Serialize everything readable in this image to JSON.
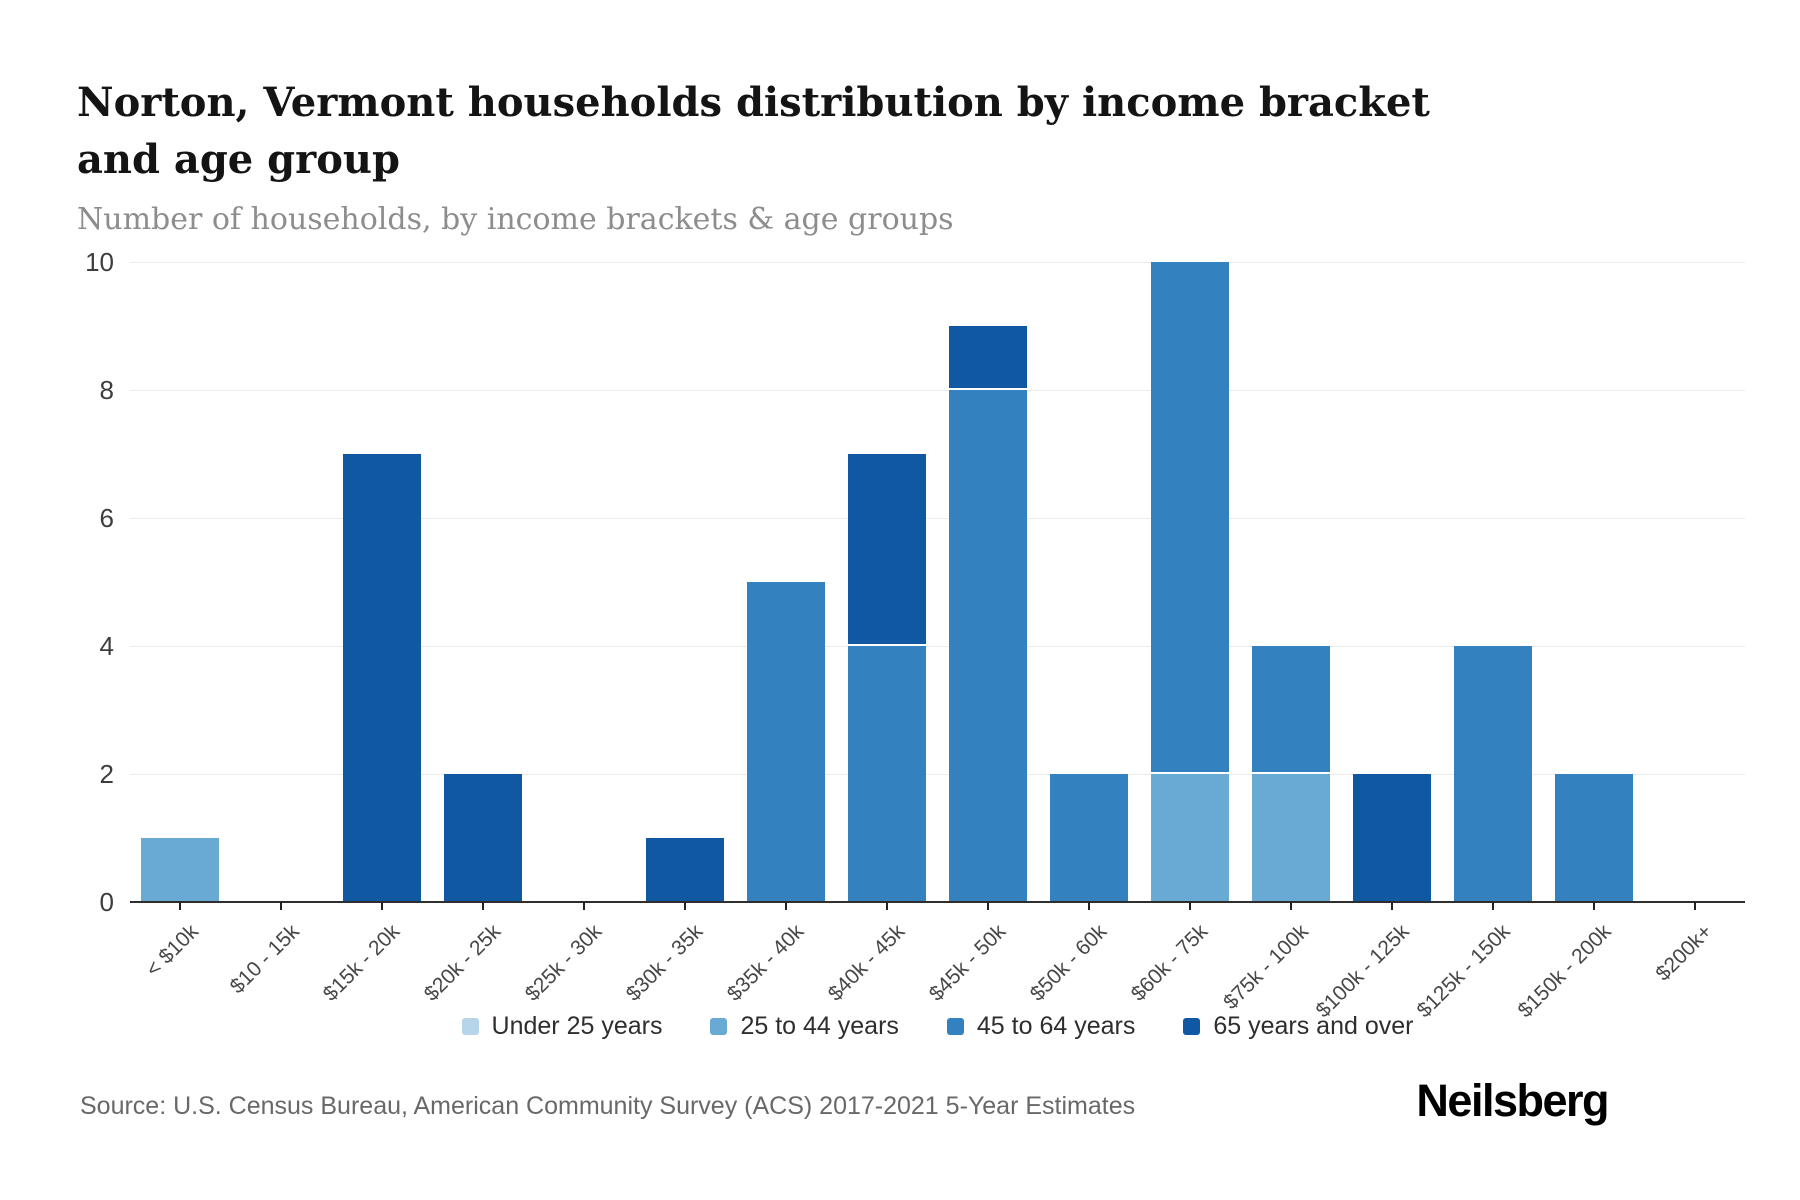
{
  "header": {
    "title": "Norton, Vermont households distribution by income bracket and age group",
    "subtitle": "Number of households, by income brackets & age groups"
  },
  "footer": {
    "source": "Source: U.S. Census Bureau, American Community Survey (ACS) 2017-2021 5-Year Estimates",
    "brand": "Neilsberg"
  },
  "chart_data": {
    "type": "bar",
    "stacked": true,
    "title": "Norton, Vermont households distribution by income bracket and age group",
    "xlabel": "",
    "ylabel": "Number of households",
    "ylim": [
      0,
      10
    ],
    "yticks": [
      0,
      2,
      4,
      6,
      8,
      10
    ],
    "grid": true,
    "legend_position": "bottom",
    "categories": [
      "< $10k",
      "$10 - 15k",
      "$15k - 20k",
      "$20k - 25k",
      "$25k - 30k",
      "$30k - 35k",
      "$35k - 40k",
      "$40k - 45k",
      "$45k - 50k",
      "$50k - 60k",
      "$60k - 75k",
      "$75k - 100k",
      "$100k - 125k",
      "$125k - 150k",
      "$150k - 200k",
      "$200k+"
    ],
    "series": [
      {
        "name": "Under 25 years",
        "color": "#b7d5ea",
        "values": [
          0,
          0,
          0,
          0,
          0,
          0,
          0,
          0,
          0,
          0,
          0,
          0,
          0,
          0,
          0,
          0
        ]
      },
      {
        "name": "25 to 44 years",
        "color": "#69aad5",
        "values": [
          1,
          0,
          0,
          0,
          0,
          0,
          0,
          0,
          0,
          0,
          2,
          2,
          0,
          0,
          0,
          0
        ]
      },
      {
        "name": "45 to 64 years",
        "color": "#3382bf",
        "values": [
          0,
          0,
          0,
          0,
          0,
          0,
          5,
          4,
          8,
          2,
          8,
          2,
          0,
          4,
          2,
          0
        ]
      },
      {
        "name": "65 years and over",
        "color": "#1158a3",
        "values": [
          0,
          0,
          7,
          2,
          0,
          1,
          0,
          3,
          1,
          0,
          0,
          0,
          2,
          0,
          0,
          0
        ]
      }
    ]
  }
}
